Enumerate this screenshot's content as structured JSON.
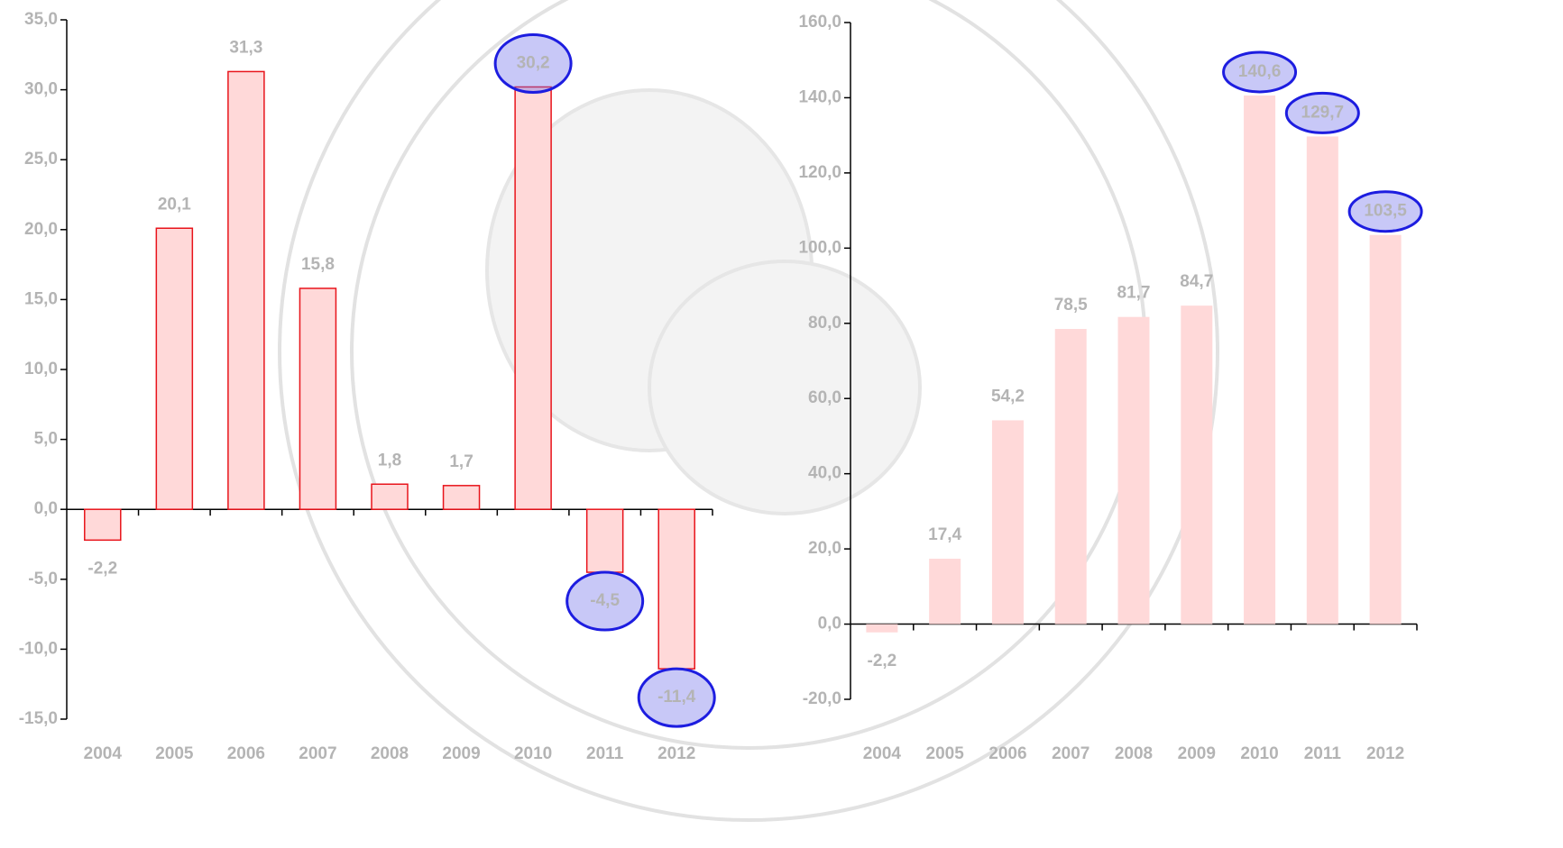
{
  "chart_data": [
    {
      "type": "bar",
      "categories": [
        "2004",
        "2005",
        "2006",
        "2007",
        "2008",
        "2009",
        "2010",
        "2011",
        "2012"
      ],
      "values": [
        -2.2,
        20.1,
        31.3,
        15.8,
        1.8,
        1.7,
        30.2,
        -4.5,
        -11.4
      ],
      "value_labels": [
        "-2,2",
        "20,1",
        "31,3",
        "15,8",
        "1,8",
        "1,7",
        "30,2",
        "-4,5",
        "-11,4"
      ],
      "color": "#ffd9d9",
      "edge_color": "#e8141b",
      "ylim": [
        -15,
        35
      ],
      "yticks": [
        {
          "value": -15,
          "label": "-15,0"
        },
        {
          "value": -10,
          "label": "-10,0"
        },
        {
          "value": -5,
          "label": "-5,0"
        },
        {
          "value": 0,
          "label": "0,0"
        },
        {
          "value": 5,
          "label": "5,0"
        },
        {
          "value": 10,
          "label": "10,0"
        },
        {
          "value": 15,
          "label": "15,0"
        },
        {
          "value": 20,
          "label": "20,0"
        },
        {
          "value": 25,
          "label": "25,0"
        },
        {
          "value": 30,
          "label": "30,0"
        },
        {
          "value": 35,
          "label": "35,0"
        }
      ],
      "grid": false
    },
    {
      "type": "bar",
      "categories": [
        "2004",
        "2005",
        "2006",
        "2007",
        "2008",
        "2009",
        "2010",
        "2011",
        "2012"
      ],
      "values": [
        -2.2,
        17.4,
        54.2,
        78.5,
        81.7,
        84.7,
        140.6,
        129.7,
        103.5
      ],
      "value_labels": [
        "-2,2",
        "17,4",
        "54,2",
        "78,5",
        "81,7",
        "84,7",
        "140,6",
        "129,7",
        "103,5"
      ],
      "color": "#ffd9d9",
      "ylim": [
        -20,
        160
      ],
      "yticks": [
        {
          "value": -20,
          "label": "-20,0"
        },
        {
          "value": 0,
          "label": "0,0"
        },
        {
          "value": 20,
          "label": "20,0"
        },
        {
          "value": 40,
          "label": "40,0"
        },
        {
          "value": 60,
          "label": "60,0"
        },
        {
          "value": 80,
          "label": "80,0"
        },
        {
          "value": 100,
          "label": "100,0"
        },
        {
          "value": 120,
          "label": "120,0"
        },
        {
          "value": 140,
          "label": "140,0"
        },
        {
          "value": 160,
          "label": "160,0"
        }
      ],
      "grid": false
    }
  ]
}
